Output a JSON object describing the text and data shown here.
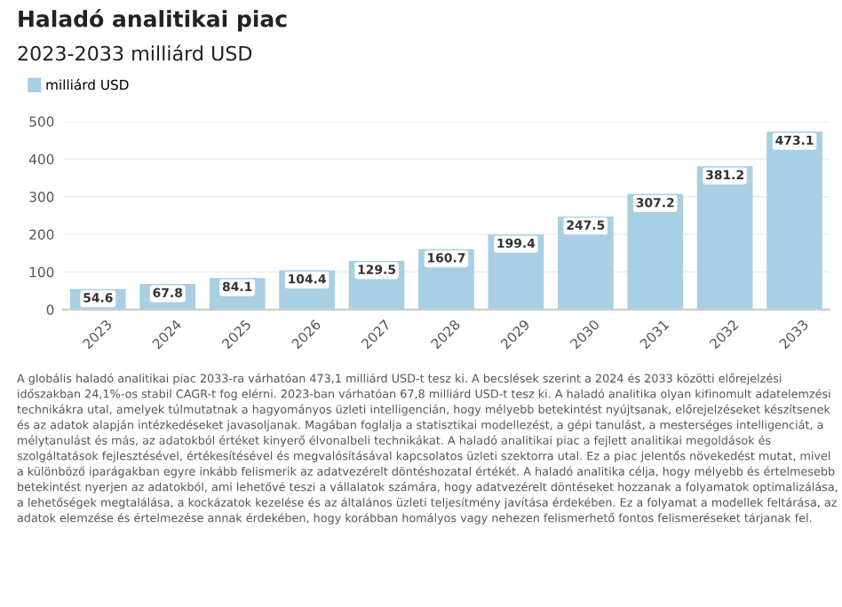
{
  "chart_data": {
    "type": "bar",
    "title": "Haladó analitikai piac",
    "subtitle": "2023-2033 milliárd USD",
    "categories": [
      "2023",
      "2024",
      "2025",
      "2026",
      "2027",
      "2028",
      "2029",
      "2030",
      "2031",
      "2032",
      "2033"
    ],
    "series": [
      {
        "name": "milliárd USD",
        "color": "#a8cfe4",
        "values": [
          54.6,
          67.8,
          84.1,
          104.4,
          129.5,
          160.7,
          199.4,
          247.5,
          307.2,
          381.2,
          473.1
        ]
      }
    ],
    "ylim": [
      0,
      500
    ],
    "yticks": [
      0,
      100,
      200,
      300,
      400,
      500
    ],
    "grid": "y",
    "legend": "top left",
    "data_labels": true,
    "annotations": [
      "A globális haladó analitikai piac 2033-ra várhatóan 473,1 milliárd USD-t tesz ki. A becslések szerint a 2024 és 2033 közötti előrejelzési időszakban 24,1%-os stabil CAGR-t fog elérni. 2023-ban várhatóan 67,8 milliárd USD-t tesz ki. A haladó analitika olyan kifinomult adatelemzési technikákra utal, amelyek túlmutatnak a hagyományos üzleti intelligencián, hogy mélyebb betekintést nyújtsanak, előrejelzéseket készítsenek és az adatok alapján intézkedéseket javasoljanak. Magában foglalja a statisztikai modellezést, a gépi tanulást, a mesterséges intelligenciát, a mélytanulást és más, az adatokból értéket kinyerő élvonalbeli technikákat. A haladó analitikai piac a fejlett analitikai megoldások és szolgáltatások fejlesztésével, értékesítésével és megvalósításával kapcsolatos üzleti szektorra utal. Ez a piac jelentős növekedést mutat, mivel a különböző iparágakban egyre inkább felismerik az adatvezérelt döntéshozatal értékét. A haladó analitika célja, hogy mélyebb és értelmesebb betekintést nyerjen az adatokból, ami lehetővé teszi a vállalatok számára, hogy adatvezérelt döntéseket hozzanak a folyamatok optimalizálása, a lehetőségek megtalálása, a kockázatok kezelése és az általános üzleti teljesítmény javítása érdekében. Ez a folyamat a modellek feltárása, az adatok elemzése és értelmezése annak érdekében, hogy korábban homályos vagy nehezen felismerhető fontos felismeréseket tárjanak fel."
    ]
  }
}
